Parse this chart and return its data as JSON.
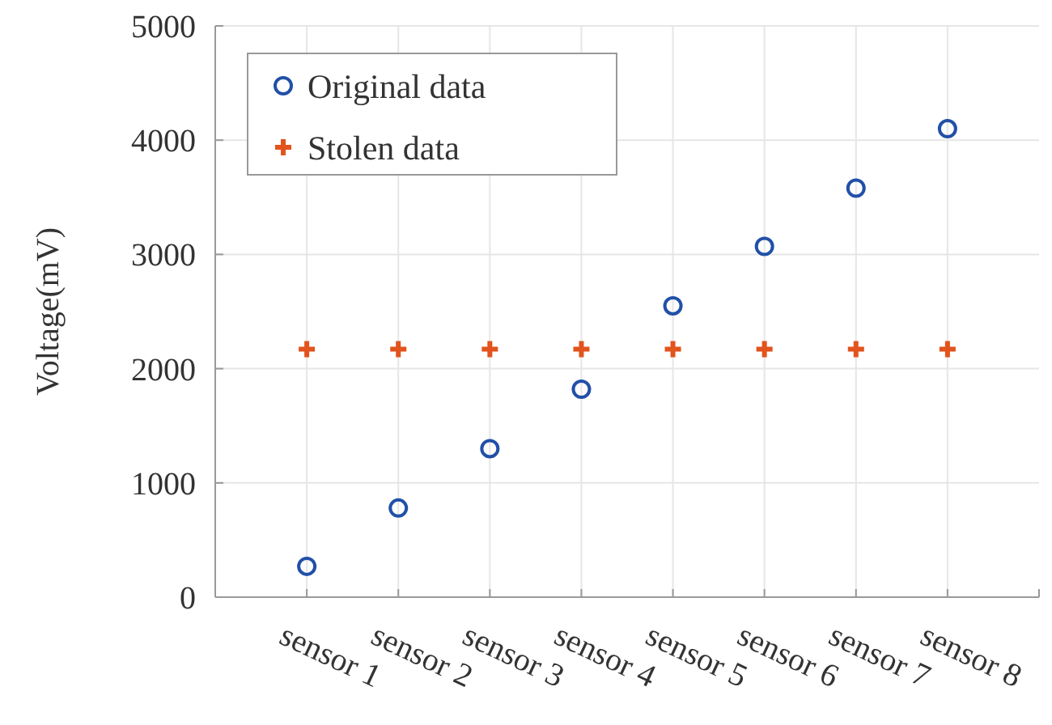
{
  "chart_data": {
    "type": "scatter",
    "ylabel": "Voltage(mV)",
    "categories": [
      "sensor 1",
      "sensor 2",
      "sensor 3",
      "sensor 4",
      "sensor 5",
      "sensor 6",
      "sensor 7",
      "sensor 8"
    ],
    "series": [
      {
        "name": "Original data",
        "color": "#2150a8",
        "marker": "circle",
        "values": [
          270,
          780,
          1300,
          1820,
          2550,
          3070,
          3580,
          4100
        ]
      },
      {
        "name": "Stolen data",
        "color": "#e2531d",
        "marker": "cross",
        "values": [
          2170,
          2170,
          2170,
          2170,
          2170,
          2170,
          2170,
          2170
        ]
      }
    ],
    "ylim": [
      0,
      5000
    ],
    "yticks": [
      0,
      1000,
      2000,
      3000,
      4000,
      5000
    ],
    "grid": true,
    "legend": "top left"
  }
}
